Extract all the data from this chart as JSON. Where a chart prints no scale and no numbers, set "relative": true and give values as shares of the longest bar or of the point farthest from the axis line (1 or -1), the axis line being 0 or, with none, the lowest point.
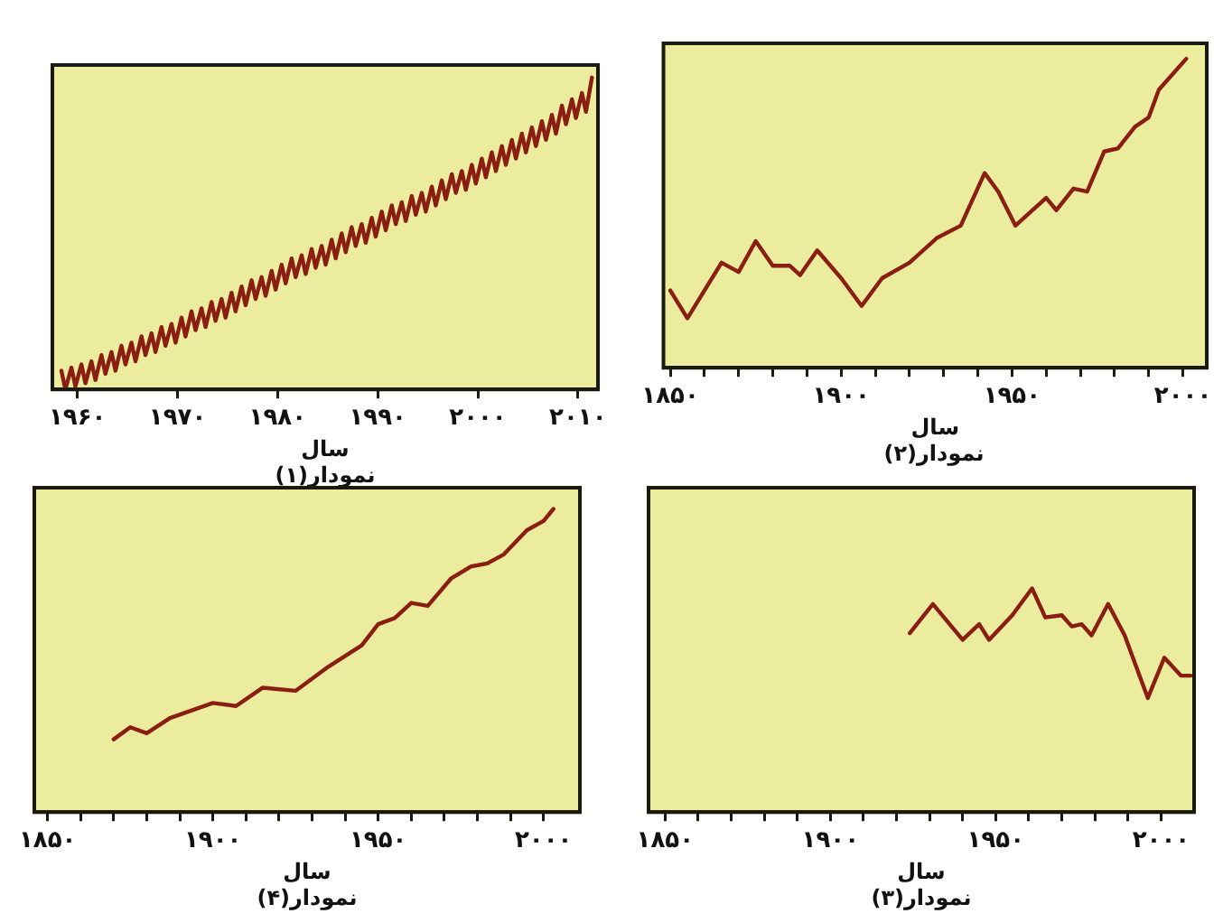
{
  "chart_data": [
    {
      "type": "line",
      "title": "نمودار(۱)",
      "xlabel": "سال",
      "relative": true,
      "grid": false,
      "marker": "none",
      "line_style": "solid",
      "xlim": [
        1957.5,
        2012
      ],
      "xticks": [
        {
          "value": 1960,
          "label": "۱۹۶۰"
        },
        {
          "value": 1970,
          "label": "۱۹۷۰"
        },
        {
          "value": 1980,
          "label": "۱۹۸۰"
        },
        {
          "value": 1990,
          "label": "۱۹۹۰"
        },
        {
          "value": 2000,
          "label": "۲۰۰۰"
        },
        {
          "value": 2010,
          "label": "۲۰۱۰"
        }
      ],
      "x": [
        1958.4,
        1958.8,
        1959.4,
        1959.8,
        1960.4,
        1960.8,
        1961.4,
        1961.8,
        1962.4,
        1962.8,
        1963.4,
        1963.8,
        1964.4,
        1964.8,
        1965.4,
        1965.8,
        1966.4,
        1966.8,
        1967.4,
        1967.8,
        1968.4,
        1968.8,
        1969.4,
        1969.8,
        1970.4,
        1970.8,
        1971.4,
        1971.8,
        1972.4,
        1972.8,
        1973.4,
        1973.8,
        1974.4,
        1974.8,
        1975.4,
        1975.8,
        1976.4,
        1976.8,
        1977.4,
        1977.8,
        1978.4,
        1978.8,
        1979.4,
        1979.8,
        1980.4,
        1980.8,
        1981.4,
        1981.8,
        1982.4,
        1982.8,
        1983.4,
        1983.8,
        1984.4,
        1984.8,
        1985.4,
        1985.8,
        1986.4,
        1986.8,
        1987.4,
        1987.8,
        1988.4,
        1988.8,
        1989.4,
        1989.8,
        1990.4,
        1990.8,
        1991.4,
        1991.8,
        1992.4,
        1992.8,
        1993.4,
        1993.8,
        1994.4,
        1994.8,
        1995.4,
        1995.8,
        1996.4,
        1996.8,
        1997.4,
        1997.8,
        1998.4,
        1998.8,
        1999.4,
        1999.8,
        2000.4,
        2000.8,
        2001.4,
        2001.8,
        2002.4,
        2002.8,
        2003.4,
        2003.8,
        2004.4,
        2004.8,
        2005.4,
        2005.8,
        2006.4,
        2006.8,
        2007.4,
        2007.8,
        2008.4,
        2008.8,
        2009.4,
        2009.8,
        2010.4,
        2010.8,
        2011.4
      ],
      "series": [
        {
          "color": "#8b1e12",
          "values": [
            0.06,
            0.0,
            0.07,
            0.01,
            0.08,
            0.02,
            0.09,
            0.03,
            0.11,
            0.05,
            0.12,
            0.06,
            0.14,
            0.08,
            0.15,
            0.09,
            0.17,
            0.11,
            0.18,
            0.12,
            0.2,
            0.14,
            0.21,
            0.15,
            0.23,
            0.17,
            0.25,
            0.19,
            0.26,
            0.2,
            0.28,
            0.22,
            0.29,
            0.23,
            0.31,
            0.25,
            0.33,
            0.27,
            0.35,
            0.29,
            0.36,
            0.3,
            0.38,
            0.32,
            0.4,
            0.34,
            0.42,
            0.36,
            0.43,
            0.37,
            0.45,
            0.39,
            0.46,
            0.4,
            0.48,
            0.42,
            0.5,
            0.44,
            0.52,
            0.46,
            0.53,
            0.47,
            0.55,
            0.49,
            0.57,
            0.51,
            0.59,
            0.53,
            0.6,
            0.54,
            0.62,
            0.56,
            0.63,
            0.57,
            0.65,
            0.59,
            0.67,
            0.61,
            0.69,
            0.63,
            0.7,
            0.64,
            0.72,
            0.66,
            0.74,
            0.68,
            0.76,
            0.7,
            0.78,
            0.72,
            0.8,
            0.74,
            0.82,
            0.76,
            0.84,
            0.78,
            0.86,
            0.8,
            0.88,
            0.82,
            0.91,
            0.85,
            0.93,
            0.87,
            0.95,
            0.89,
            1.0
          ]
        }
      ]
    },
    {
      "type": "line",
      "title": "نمودار(۲)",
      "xlabel": "سال",
      "relative": true,
      "grid": false,
      "marker": "none",
      "line_style": "solid",
      "xlim": [
        1848,
        2007
      ],
      "xticks": [
        {
          "value": 1850,
          "label": "۱۸۵۰"
        },
        {
          "value": 1860,
          "label": null
        },
        {
          "value": 1870,
          "label": null
        },
        {
          "value": 1880,
          "label": null
        },
        {
          "value": 1890,
          "label": null
        },
        {
          "value": 1900,
          "label": "۱۹۰۰"
        },
        {
          "value": 1910,
          "label": null
        },
        {
          "value": 1920,
          "label": null
        },
        {
          "value": 1930,
          "label": null
        },
        {
          "value": 1940,
          "label": null
        },
        {
          "value": 1950,
          "label": "۱۹۵۰"
        },
        {
          "value": 1960,
          "label": null
        },
        {
          "value": 1970,
          "label": null
        },
        {
          "value": 1980,
          "label": null
        },
        {
          "value": 1990,
          "label": null
        },
        {
          "value": 2000,
          "label": "۲۰۰۰"
        }
      ],
      "x": [
        1850,
        1855,
        1860,
        1865,
        1870,
        1875,
        1880,
        1885,
        1888,
        1893,
        1900,
        1906,
        1912,
        1920,
        1928,
        1935,
        1942,
        1946,
        1951,
        1955,
        1960,
        1963,
        1968,
        1972,
        1977,
        1981,
        1986,
        1990,
        1993,
        2001
      ],
      "series": [
        {
          "color": "#8b1e12",
          "values": [
            0.25,
            0.16,
            0.25,
            0.34,
            0.31,
            0.41,
            0.33,
            0.33,
            0.3,
            0.38,
            0.29,
            0.2,
            0.29,
            0.34,
            0.42,
            0.46,
            0.63,
            0.57,
            0.46,
            0.5,
            0.55,
            0.51,
            0.58,
            0.57,
            0.7,
            0.71,
            0.78,
            0.81,
            0.9,
            1.0
          ]
        }
      ]
    },
    {
      "type": "line",
      "title": "نمودار(۴)",
      "xlabel": "سال",
      "relative": true,
      "grid": false,
      "marker": "none",
      "line_style": "solid",
      "xlim": [
        1846,
        2011
      ],
      "xticks": [
        {
          "value": 1850,
          "label": "۱۸۵۰"
        },
        {
          "value": 1860,
          "label": null
        },
        {
          "value": 1870,
          "label": null
        },
        {
          "value": 1880,
          "label": null
        },
        {
          "value": 1890,
          "label": null
        },
        {
          "value": 1900,
          "label": "۱۹۰۰"
        },
        {
          "value": 1910,
          "label": null
        },
        {
          "value": 1920,
          "label": null
        },
        {
          "value": 1930,
          "label": null
        },
        {
          "value": 1940,
          "label": null
        },
        {
          "value": 1950,
          "label": "۱۹۵۰"
        },
        {
          "value": 1960,
          "label": null
        },
        {
          "value": 1970,
          "label": null
        },
        {
          "value": 1980,
          "label": null
        },
        {
          "value": 1990,
          "label": null
        },
        {
          "value": 2000,
          "label": "۲۰۰۰"
        }
      ],
      "x": [
        1870,
        1875,
        1880,
        1887,
        1900,
        1907,
        1915,
        1925,
        1935,
        1945,
        1950,
        1955,
        1960,
        1965,
        1972,
        1978,
        1983,
        1988,
        1995,
        2000,
        2003
      ],
      "series": [
        {
          "color": "#8b1e12",
          "values": [
            0.24,
            0.28,
            0.26,
            0.31,
            0.36,
            0.35,
            0.41,
            0.4,
            0.48,
            0.55,
            0.62,
            0.64,
            0.69,
            0.68,
            0.77,
            0.81,
            0.82,
            0.85,
            0.93,
            0.96,
            1.0
          ]
        }
      ]
    },
    {
      "type": "line",
      "title": "نمودار(۳)",
      "xlabel": "سال",
      "relative": true,
      "grid": false,
      "marker": "none",
      "line_style": "solid",
      "xlim": [
        1845,
        2010
      ],
      "xticks": [
        {
          "value": 1850,
          "label": "۱۸۵۰"
        },
        {
          "value": 1860,
          "label": null
        },
        {
          "value": 1870,
          "label": null
        },
        {
          "value": 1880,
          "label": null
        },
        {
          "value": 1890,
          "label": null
        },
        {
          "value": 1900,
          "label": "۱۹۰۰"
        },
        {
          "value": 1910,
          "label": null
        },
        {
          "value": 1920,
          "label": null
        },
        {
          "value": 1930,
          "label": null
        },
        {
          "value": 1940,
          "label": null
        },
        {
          "value": 1950,
          "label": "۱۹۵۰"
        },
        {
          "value": 1960,
          "label": null
        },
        {
          "value": 1970,
          "label": null
        },
        {
          "value": 1980,
          "label": null
        },
        {
          "value": 1990,
          "label": null
        },
        {
          "value": 2000,
          "label": "۲۰۰۰"
        }
      ],
      "x": [
        1924,
        1931,
        1940,
        1945,
        1948,
        1955,
        1961,
        1965,
        1970,
        1973,
        1976,
        1979,
        1984,
        1989,
        1996,
        2001,
        2006,
        2009
      ],
      "series": [
        {
          "color": "#8b1e12",
          "values": [
            0.8,
            0.93,
            0.77,
            0.84,
            0.77,
            0.88,
            1.0,
            0.87,
            0.88,
            0.83,
            0.84,
            0.79,
            0.93,
            0.79,
            0.51,
            0.69,
            0.61,
            0.61
          ]
        }
      ]
    }
  ]
}
